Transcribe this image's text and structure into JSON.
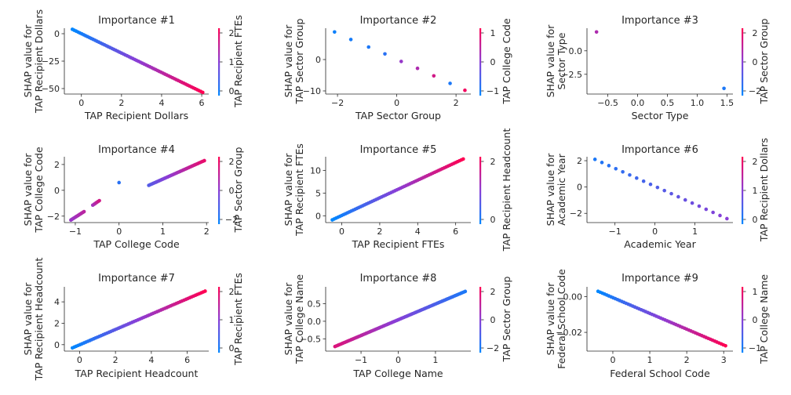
{
  "chart_data": [
    {
      "type": "scatter",
      "title": "Importance #1",
      "xlabel": "TAP Recipient Dollars",
      "ylabel": [
        "SHAP value for",
        "TAP Recipient Dollars"
      ],
      "colorbar_label": "TAP Recipient FTEs",
      "xlim": [
        -0.85,
        6.35
      ],
      "ylim": [
        -55,
        5
      ],
      "xticks": [
        0,
        2,
        4,
        6
      ],
      "xtick_labels": [
        "0",
        "2",
        "4",
        "6"
      ],
      "yticks": [
        0,
        -25,
        -50
      ],
      "ytick_labels": [
        "0",
        "−25",
        "−50"
      ],
      "cbar_ticks": [
        2,
        1,
        0
      ],
      "cbar_tick_labels": [
        "2",
        "1",
        "0"
      ],
      "points": {
        "x0": -0.45,
        "x1": 6.05,
        "y0": 4.0,
        "y1": -53.5,
        "n": 70,
        "dense": true,
        "cstart": 0.0,
        "cend": 1.0
      }
    },
    {
      "type": "scatter",
      "title": "Importance #2",
      "xlabel": "TAP Sector Group",
      "ylabel": [
        "SHAP value for",
        "TAP Sector Group"
      ],
      "colorbar_label": "TAP College Code",
      "xlim": [
        -2.4,
        2.5
      ],
      "ylim": [
        -11,
        10
      ],
      "xticks": [
        -2,
        0,
        2
      ],
      "xtick_labels": [
        "−2",
        "0",
        "2"
      ],
      "yticks": [
        0,
        -10
      ],
      "ytick_labels": [
        "0",
        "−10"
      ],
      "cbar_ticks": [
        1,
        0,
        -1
      ],
      "cbar_tick_labels": [
        "1",
        "0",
        "−1"
      ],
      "points_list": [
        [
          -2.1,
          8.8,
          0.05
        ],
        [
          -1.55,
          6.4,
          0.08
        ],
        [
          -0.95,
          4.0,
          0.1
        ],
        [
          -0.4,
          1.8,
          0.15
        ],
        [
          0.15,
          -0.6,
          0.55
        ],
        [
          0.7,
          -2.8,
          0.65
        ],
        [
          1.25,
          -5.2,
          0.8
        ],
        [
          1.8,
          -7.6,
          0.1
        ],
        [
          2.3,
          -9.8,
          0.95
        ]
      ]
    },
    {
      "type": "scatter",
      "title": "Importance #3",
      "xlabel": "Sector Type",
      "ylabel": [
        "SHAP value for",
        "Sector Type"
      ],
      "colorbar_label": "TAP Sector Group",
      "xlim": [
        -0.85,
        1.6
      ],
      "ylim": [
        -4.6,
        2.4
      ],
      "xticks": [
        -0.5,
        0,
        0.5,
        1,
        1.5
      ],
      "xtick_labels": [
        "−0.5",
        "0.0",
        "0.5",
        "1.0",
        "1.5"
      ],
      "yticks": [
        0,
        -2.5
      ],
      "ytick_labels": [
        "0.0",
        "−2.5"
      ],
      "cbar_ticks": [
        2,
        0,
        -2
      ],
      "cbar_tick_labels": [
        "2",
        "0",
        "−2"
      ],
      "points_list": [
        [
          -0.69,
          2.0,
          0.65
        ],
        [
          1.45,
          -4.0,
          0.1
        ]
      ]
    },
    {
      "type": "scatter",
      "title": "Importance #4",
      "xlabel": "TAP College Code",
      "ylabel": [
        "SHAP value for",
        "TAP College Code"
      ],
      "colorbar_label": "TAP Sector Group",
      "xlim": [
        -1.25,
        2.05
      ],
      "ylim": [
        -2.5,
        2.6
      ],
      "xticks": [
        -1,
        0,
        1,
        2
      ],
      "xtick_labels": [
        "−1",
        "0",
        "1",
        "2"
      ],
      "yticks": [
        2,
        0,
        -2
      ],
      "ytick_labels": [
        "2",
        "0",
        "−2"
      ],
      "cbar_ticks": [
        2,
        0,
        -2
      ],
      "cbar_tick_labels": [
        "2",
        "0",
        "−2"
      ],
      "segments": [
        {
          "x0": -1.1,
          "x1": -0.8,
          "y0": -2.3,
          "y1": -1.65,
          "n": 14,
          "cstart": 0.55,
          "cend": 0.7
        },
        {
          "x0": -0.6,
          "x1": -0.45,
          "y0": -1.15,
          "y1": -0.8,
          "n": 6,
          "cstart": 0.6,
          "cend": 0.8
        },
        {
          "x0": 0.0,
          "x1": 0.0,
          "y0": 0.6,
          "y1": 0.6,
          "n": 1,
          "cstart": 0.15,
          "cend": 0.15
        },
        {
          "x0": 0.68,
          "x1": 1.95,
          "y0": 2.35,
          "y1": 5.3,
          "n": 40,
          "cstart": 0.3,
          "cend": 0.9
        }
      ],
      "segment_yscale": "ymap4"
    },
    {
      "type": "scatter",
      "title": "Importance #5",
      "xlabel": "TAP Recipient FTEs",
      "ylabel": [
        "SHAP value for",
        "TAP Recipient FTEs"
      ],
      "colorbar_label": "TAP Recipient Headcount",
      "xlim": [
        -0.85,
        6.8
      ],
      "ylim": [
        -1.5,
        13
      ],
      "xticks": [
        0,
        2,
        4,
        6
      ],
      "xtick_labels": [
        "0",
        "2",
        "4",
        "6"
      ],
      "yticks": [
        10,
        5,
        0
      ],
      "ytick_labels": [
        "10",
        "5",
        "0"
      ],
      "cbar_ticks": [
        2,
        0
      ],
      "cbar_tick_labels": [
        "2",
        "0"
      ],
      "points": {
        "x0": -0.5,
        "x1": 6.4,
        "y0": -0.9,
        "y1": 12.5,
        "n": 70,
        "dense": true,
        "cstart": 0.0,
        "cend": 1.0
      }
    },
    {
      "type": "scatter",
      "title": "Importance #6",
      "xlabel": "Academic Year",
      "ylabel": [
        "SHAP value for",
        "Academic Year"
      ],
      "colorbar_label": "TAP Recipient Dollars",
      "xlim": [
        -1.7,
        1.95
      ],
      "ylim": [
        -2.7,
        2.3
      ],
      "xticks": [
        -1,
        0,
        1
      ],
      "xtick_labels": [
        "−1",
        "0",
        "1"
      ],
      "yticks": [
        2,
        0,
        -2
      ],
      "ytick_labels": [
        "2",
        "0",
        "−2"
      ],
      "cbar_ticks": [
        2,
        1,
        0
      ],
      "cbar_tick_labels": [
        "2",
        "1",
        "0"
      ],
      "points": {
        "x0": -1.5,
        "x1": 1.8,
        "y0": 2.1,
        "y1": -2.4,
        "n": 20,
        "dense": false,
        "cstart": 0.1,
        "cend": 0.5
      }
    },
    {
      "type": "scatter",
      "title": "Importance #7",
      "xlabel": "TAP Recipient Headcount",
      "ylabel": [
        "SHAP value for",
        "TAP Recipient Headcount"
      ],
      "colorbar_label": "TAP Recipient FTEs",
      "xlim": [
        -0.85,
        7.2
      ],
      "ylim": [
        -0.6,
        5.4
      ],
      "xticks": [
        0,
        2,
        4,
        6
      ],
      "xtick_labels": [
        "0",
        "2",
        "4",
        "6"
      ],
      "yticks": [
        4,
        2,
        0
      ],
      "ytick_labels": [
        "4",
        "2",
        "0"
      ],
      "cbar_ticks": [
        2,
        1,
        0
      ],
      "cbar_tick_labels": [
        "2",
        "1",
        "0"
      ],
      "points": {
        "x0": -0.4,
        "x1": 7.0,
        "y0": -0.3,
        "y1": 5.0,
        "n": 70,
        "dense": true,
        "cstart": 0.0,
        "cend": 1.0
      }
    },
    {
      "type": "scatter",
      "title": "Importance #8",
      "xlabel": "TAP College Name",
      "ylabel": [
        "SHAP value for",
        "TAP College Name"
      ],
      "colorbar_label": "TAP Sector Group",
      "xlim": [
        -1.95,
        1.95
      ],
      "ylim": [
        -0.85,
        0.98
      ],
      "xticks": [
        -1,
        0,
        1
      ],
      "xtick_labels": [
        "−1",
        "0",
        "1"
      ],
      "yticks": [
        0.5,
        0,
        -0.5
      ],
      "ytick_labels": [
        "0.5",
        "0.0",
        "−0.5"
      ],
      "cbar_ticks": [
        2,
        0,
        -2
      ],
      "cbar_tick_labels": [
        "2",
        "0",
        "−2"
      ],
      "points": {
        "x0": -1.7,
        "x1": 1.8,
        "y0": -0.72,
        "y1": 0.85,
        "n": 90,
        "dense": true,
        "cstart": 0.85,
        "cend": 0.1
      }
    },
    {
      "type": "scatter",
      "title": "Importance #9",
      "xlabel": "Federal School Code",
      "ylabel": [
        "SHAP value for",
        "Federal School Code"
      ],
      "colorbar_label": "TAP College Name",
      "xlim": [
        -0.7,
        3.25
      ],
      "ylim": [
        -0.0305,
        0.0055
      ],
      "xticks": [
        0,
        1,
        2,
        3
      ],
      "xtick_labels": [
        "0",
        "1",
        "2",
        "3"
      ],
      "yticks": [
        0,
        -0.02
      ],
      "ytick_labels": [
        "0.00",
        "−0.02"
      ],
      "cbar_ticks": [
        1,
        0,
        -1
      ],
      "cbar_tick_labels": [
        "1",
        "0",
        "−1"
      ],
      "points": {
        "x0": -0.4,
        "x1": 3.05,
        "y0": 0.003,
        "y1": -0.0275,
        "n": 60,
        "dense": false,
        "cstart": 0.0,
        "cend": 1.0
      }
    }
  ]
}
